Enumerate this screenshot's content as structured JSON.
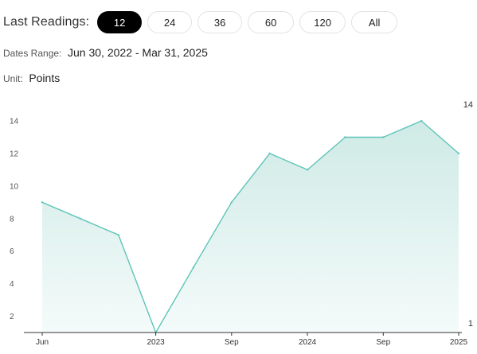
{
  "readings": {
    "label": "Last Readings:",
    "options": [
      "12",
      "24",
      "36",
      "60",
      "120",
      "All"
    ],
    "selected": "12"
  },
  "dates_range": {
    "label": "Dates Range:",
    "value": "Jun 30, 2022 - Mar 31, 2025"
  },
  "unit": {
    "label": "Unit:",
    "value": "Points"
  },
  "colors": {
    "line": "#5fc4b8",
    "fill_top": "#cfeae6",
    "fill_bottom": "#f4fbfa",
    "axis": "#333333",
    "active_pill": "#000000"
  },
  "chart_data": {
    "type": "area",
    "x": [
      "2022-06-30",
      "2022-09-30",
      "2022-12-31",
      "2023-03-31",
      "2023-06-30",
      "2023-09-30",
      "2023-12-31",
      "2024-03-31",
      "2024-06-30",
      "2024-09-30",
      "2024-12-31",
      "2025-03-31"
    ],
    "values": [
      9,
      8,
      7,
      1,
      5,
      9,
      12,
      11,
      13,
      13,
      14,
      12
    ],
    "y_ticks": [
      2,
      4,
      6,
      8,
      10,
      12,
      14
    ],
    "x_tick_labels": [
      {
        "date": "2022-06-30",
        "label": "Jun"
      },
      {
        "date": "2023-03-31",
        "label": "2023"
      },
      {
        "date": "2023-09-30",
        "label": "Sep"
      },
      {
        "date": "2024-03-31",
        "label": "2024"
      },
      {
        "date": "2024-09-30",
        "label": "Sep"
      },
      {
        "date": "2025-03-31",
        "label": "2025"
      }
    ],
    "max_label": "14",
    "min_label": "1",
    "ylim": [
      0,
      14
    ],
    "grid": false
  }
}
